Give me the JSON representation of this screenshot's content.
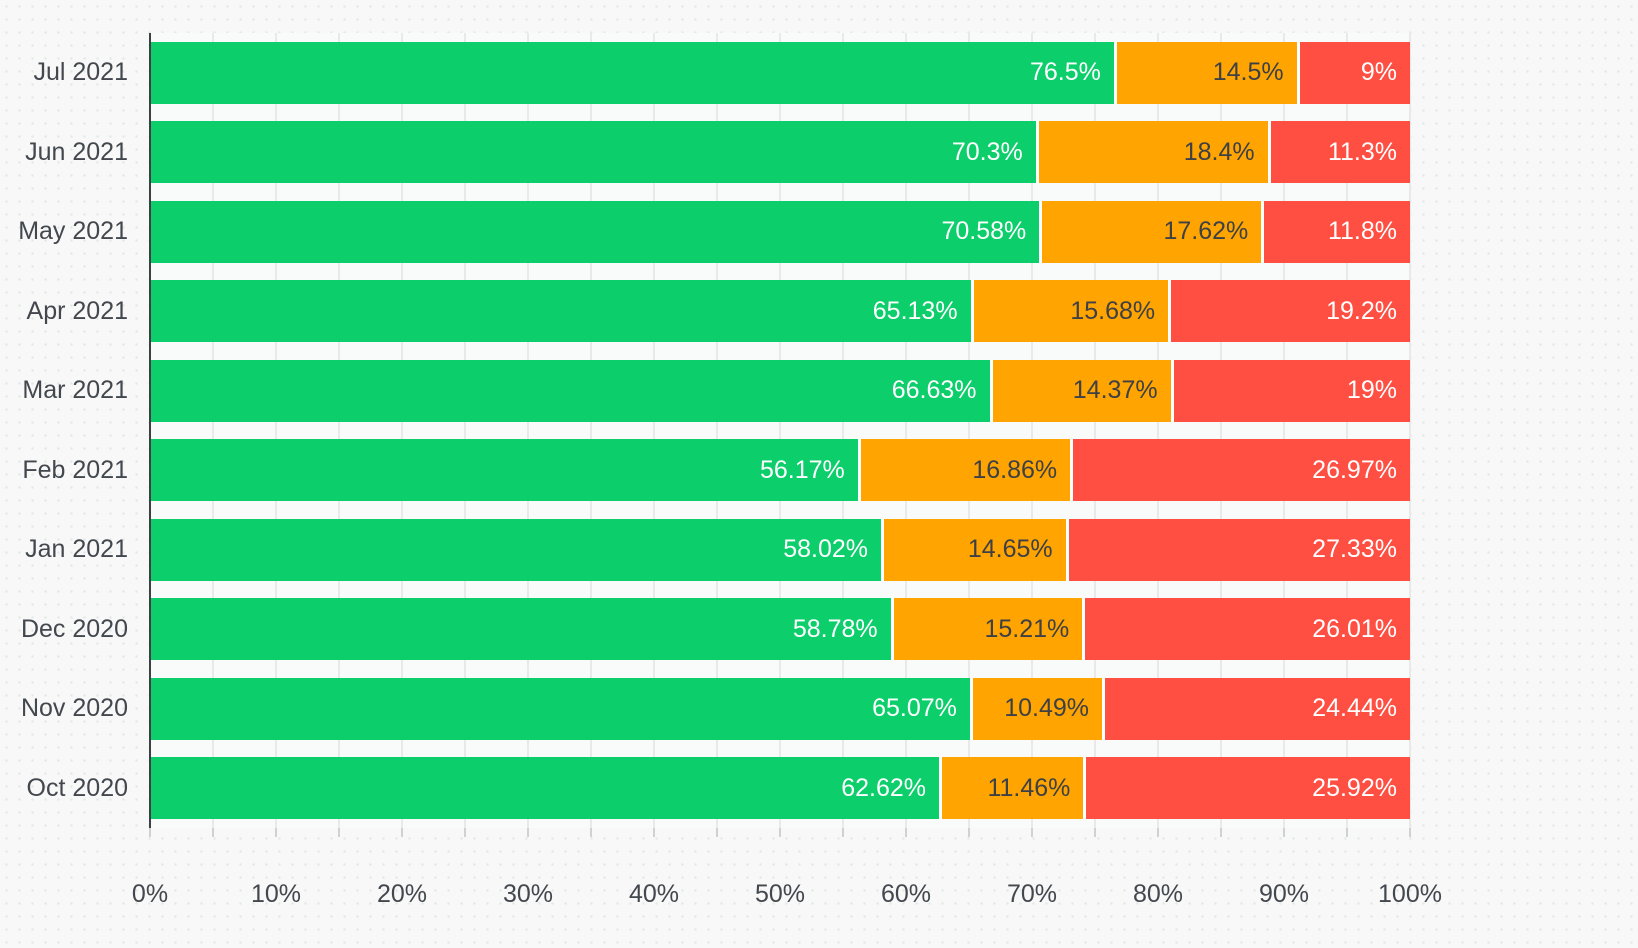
{
  "colors": {
    "green": "#0cce6b",
    "orange": "#ffa400",
    "red": "#ff4e42",
    "background": "#f7f8f7",
    "background_dot": "#e2e8e5",
    "plot_background": "#f9fafa",
    "gridline": "#e9e9e9",
    "tick": "#cfd1d2",
    "axis_line": "#3c4043",
    "axis_label_text": "#43474e",
    "value_label_light": "#ffffff",
    "value_label_dark": "#3d4045"
  },
  "chart_data": {
    "type": "bar",
    "orientation": "horizontal",
    "stacked": true,
    "stacked_total": 100,
    "unit": "%",
    "grid": true,
    "legend_position": "none",
    "title": "",
    "xlabel": "",
    "ylabel": "",
    "x_axis": {
      "range": [
        0,
        100
      ],
      "major_tick_step": 10,
      "minor_grid_step": 5,
      "tick_labels": [
        "0%",
        "10%",
        "20%",
        "30%",
        "40%",
        "50%",
        "60%",
        "70%",
        "80%",
        "90%",
        "100%"
      ]
    },
    "categories": [
      "Jul 2021",
      "Jun 2021",
      "May 2021",
      "Apr 2021",
      "Mar 2021",
      "Feb 2021",
      "Jan 2021",
      "Dec 2020",
      "Nov 2020",
      "Oct 2020"
    ],
    "series": [
      {
        "name": "green",
        "color": "#0cce6b",
        "values": [
          76.5,
          70.3,
          70.58,
          65.13,
          66.63,
          56.17,
          58.02,
          58.78,
          65.07,
          62.62
        ],
        "labels": [
          "76.5%",
          "70.3%",
          "70.58%",
          "65.13%",
          "66.63%",
          "56.17%",
          "58.02%",
          "58.78%",
          "65.07%",
          "62.62%"
        ]
      },
      {
        "name": "orange",
        "color": "#ffa400",
        "values": [
          14.5,
          18.4,
          17.62,
          15.68,
          14.37,
          16.86,
          14.65,
          15.21,
          10.49,
          11.46
        ],
        "labels": [
          "14.5%",
          "18.4%",
          "17.62%",
          "15.68%",
          "14.37%",
          "16.86%",
          "14.65%",
          "15.21%",
          "10.49%",
          "11.46%"
        ]
      },
      {
        "name": "red",
        "color": "#ff4e42",
        "values": [
          9,
          11.3,
          11.8,
          19.2,
          19,
          26.97,
          27.33,
          26.01,
          24.44,
          25.92
        ],
        "labels": [
          "9%",
          "11.3%",
          "11.8%",
          "19.2%",
          "19%",
          "26.97%",
          "27.33%",
          "26.01%",
          "24.44%",
          "25.92%"
        ]
      }
    ]
  }
}
